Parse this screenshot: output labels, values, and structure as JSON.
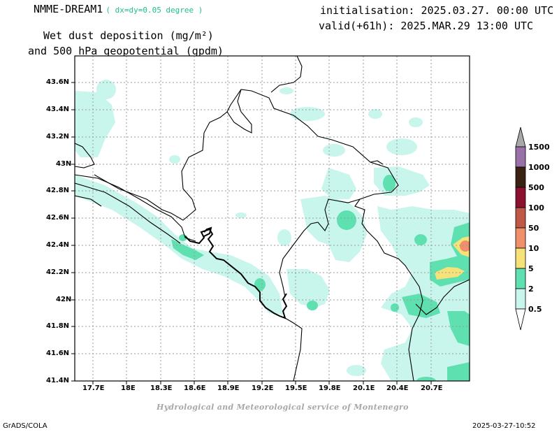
{
  "header": {
    "model": "NMME-DREAM1",
    "resolution": "( dx=dy=0.05 degree )",
    "initialisation": "initialisation: 2025.03.27. 00:00 UTC",
    "valid": "valid(+61h): 2025.MAR.29 13:00 UTC",
    "variable_line1": "Wet dust deposition (mg/m²)",
    "variable_line2": "and 500 hPa geopotential (gpdm)"
  },
  "map": {
    "lat_labels": [
      "43.6N",
      "43.4N",
      "43.2N",
      "43N",
      "42.8N",
      "42.6N",
      "42.4N",
      "42.2N",
      "42N",
      "41.8N",
      "41.6N",
      "41.4N"
    ],
    "lon_labels": [
      "17.7E",
      "18E",
      "18.3E",
      "18.6E",
      "18.9E",
      "19.2E",
      "19.5E",
      "19.8E",
      "20.1E",
      "20.4E",
      "20.7E"
    ],
    "lon_range": [
      17.5,
      21.0
    ],
    "lat_range": [
      41.4,
      43.8
    ],
    "grid": true
  },
  "legend": {
    "levels": [
      "0.5",
      "2",
      "5",
      "10",
      "50",
      "100",
      "500",
      "1000",
      "1500"
    ],
    "colors": [
      "#c8f5ec",
      "#5ee0b0",
      "#f7e27a",
      "#f0906a",
      "#c05848",
      "#8c1030",
      "#3a2212",
      "#9a70a8",
      "#a8a8a8"
    ]
  },
  "credit": "Hydrological and Meteorological service of Montenegro",
  "footer": {
    "left": "GrADS/COLA",
    "right": "2025-03-27-10:52"
  }
}
